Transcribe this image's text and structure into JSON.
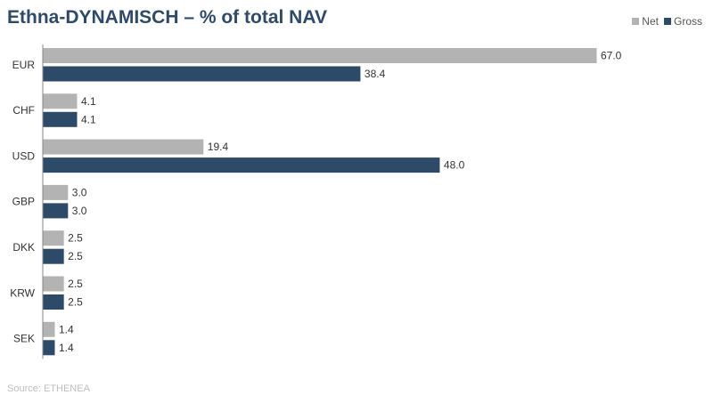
{
  "title": "Ethna-DYNAMISCH – % of total NAV",
  "source": "Source: ETHENEA",
  "colors": {
    "net": "#b3b3b3",
    "gross": "#2e4a69",
    "title": "#2f4a68",
    "axis": "#888888",
    "label": "#333333"
  },
  "legend": [
    {
      "name": "Net",
      "color": "#b3b3b3"
    },
    {
      "name": "Gross",
      "color": "#2e4a69"
    }
  ],
  "chart_data": {
    "type": "bar",
    "orientation": "horizontal",
    "title": "Ethna-DYNAMISCH – % of total NAV",
    "categories": [
      "EUR",
      "CHF",
      "USD",
      "GBP",
      "DKK",
      "KRW",
      "SEK"
    ],
    "series": [
      {
        "name": "Net",
        "values": [
          67.0,
          4.1,
          19.4,
          3.0,
          2.5,
          2.5,
          1.4
        ]
      },
      {
        "name": "Gross",
        "values": [
          38.4,
          4.1,
          48.0,
          3.0,
          2.5,
          2.5,
          1.4
        ]
      }
    ],
    "xlim": [
      0,
      67
    ],
    "grid": false,
    "legend_position": "top-right",
    "data_labels": true,
    "label_format": "one-decimal"
  }
}
